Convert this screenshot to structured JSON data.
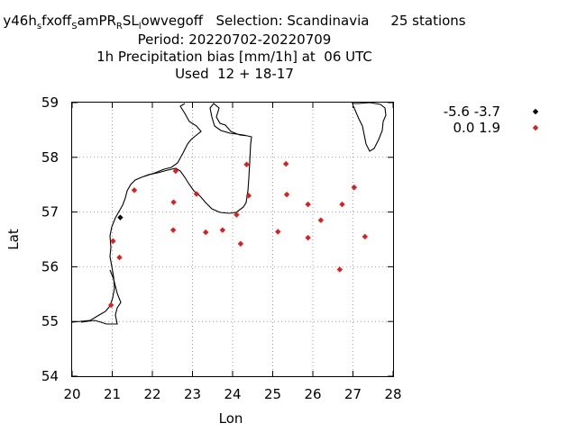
{
  "title": {
    "line1_parts": [
      "y46h",
      "s",
      "fxoff",
      "S",
      "amPR",
      "R",
      "SL",
      "l",
      "owvegoff"
    ],
    "line1_rest": "   Selection: Scandinavia     25 stations",
    "line2": "Period: 20220702-20220709",
    "line3": "1h Precipitation bias [mm/1h] at  06 UTC",
    "line4": "Used  12 + 18-17"
  },
  "chart_data": {
    "type": "scatter",
    "xlabel": "Lon",
    "ylabel": "Lat",
    "xlim": [
      20,
      28
    ],
    "ylim": [
      54,
      59
    ],
    "xticks": [
      "20",
      "21",
      "22",
      "23",
      "24",
      "25",
      "26",
      "27",
      "28"
    ],
    "yticks": [
      "54",
      "55",
      "56",
      "57",
      "58",
      "59"
    ],
    "grid": true,
    "legend_position": "top-right",
    "series": [
      {
        "name": "-5.6 -3.7",
        "color": "#000000",
        "points": [
          [
            21.2,
            56.9
          ]
        ]
      },
      {
        "name": "0.0 1.9",
        "color": "#e41a1c",
        "points": [
          [
            20.97,
            55.3
          ],
          [
            21.02,
            56.47
          ],
          [
            21.18,
            56.17
          ],
          [
            21.55,
            57.4
          ],
          [
            22.58,
            57.75
          ],
          [
            22.53,
            57.18
          ],
          [
            22.52,
            56.67
          ],
          [
            23.1,
            57.33
          ],
          [
            23.33,
            56.63
          ],
          [
            23.75,
            56.67
          ],
          [
            24.1,
            56.95
          ],
          [
            24.2,
            56.42
          ],
          [
            24.35,
            57.87
          ],
          [
            24.4,
            57.3
          ],
          [
            25.13,
            56.64
          ],
          [
            25.33,
            57.88
          ],
          [
            25.35,
            57.32
          ],
          [
            25.88,
            57.14
          ],
          [
            25.88,
            56.53
          ],
          [
            26.2,
            56.85
          ],
          [
            26.67,
            55.95
          ],
          [
            26.73,
            57.14
          ],
          [
            27.03,
            57.45
          ],
          [
            27.3,
            56.55
          ]
        ]
      }
    ]
  }
}
